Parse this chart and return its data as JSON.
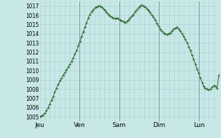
{
  "ylabel_values": [
    1005,
    1006,
    1007,
    1008,
    1009,
    1010,
    1011,
    1012,
    1013,
    1014,
    1015,
    1016,
    1017
  ],
  "ylim": [
    1004.5,
    1017.5
  ],
  "background_color": "#c8e8e8",
  "grid_color": "#a8cece",
  "line_color": "#2d6a2d",
  "marker_color": "#2d6a2d",
  "x_tick_labels": [
    "Jeu",
    "Ven",
    "Sam",
    "Dim",
    "Lun"
  ],
  "x_tick_positions": [
    0,
    24,
    48,
    72,
    96
  ],
  "vline_positions": [
    24,
    48,
    72,
    96
  ],
  "total_hours": 108,
  "data_y": [
    1005.0,
    1005.1,
    1005.2,
    1005.4,
    1005.7,
    1006.0,
    1006.4,
    1006.8,
    1007.2,
    1007.7,
    1008.1,
    1008.5,
    1008.9,
    1009.2,
    1009.5,
    1009.8,
    1010.1,
    1010.4,
    1010.7,
    1011.0,
    1011.4,
    1011.8,
    1012.2,
    1012.7,
    1013.2,
    1013.7,
    1014.2,
    1014.7,
    1015.2,
    1015.7,
    1016.1,
    1016.4,
    1016.6,
    1016.8,
    1016.9,
    1017.0,
    1017.0,
    1016.9,
    1016.7,
    1016.5,
    1016.3,
    1016.1,
    1015.9,
    1015.8,
    1015.7,
    1015.6,
    1015.7,
    1015.6,
    1015.5,
    1015.4,
    1015.3,
    1015.2,
    1015.3,
    1015.5,
    1015.7,
    1015.9,
    1016.1,
    1016.4,
    1016.6,
    1016.8,
    1017.0,
    1017.1,
    1017.0,
    1016.9,
    1016.7,
    1016.5,
    1016.3,
    1016.0,
    1015.8,
    1015.5,
    1015.1,
    1014.8,
    1014.5,
    1014.3,
    1014.1,
    1014.0,
    1013.9,
    1014.0,
    1014.1,
    1014.3,
    1014.5,
    1014.6,
    1014.7,
    1014.5,
    1014.3,
    1014.0,
    1013.7,
    1013.4,
    1013.0,
    1012.6,
    1012.2,
    1011.7,
    1011.2,
    1010.7,
    1010.2,
    1009.7,
    1009.2,
    1008.7,
    1008.3,
    1008.1,
    1008.0,
    1007.9,
    1008.0,
    1008.2,
    1008.4,
    1008.3,
    1008.1,
    1009.5
  ]
}
